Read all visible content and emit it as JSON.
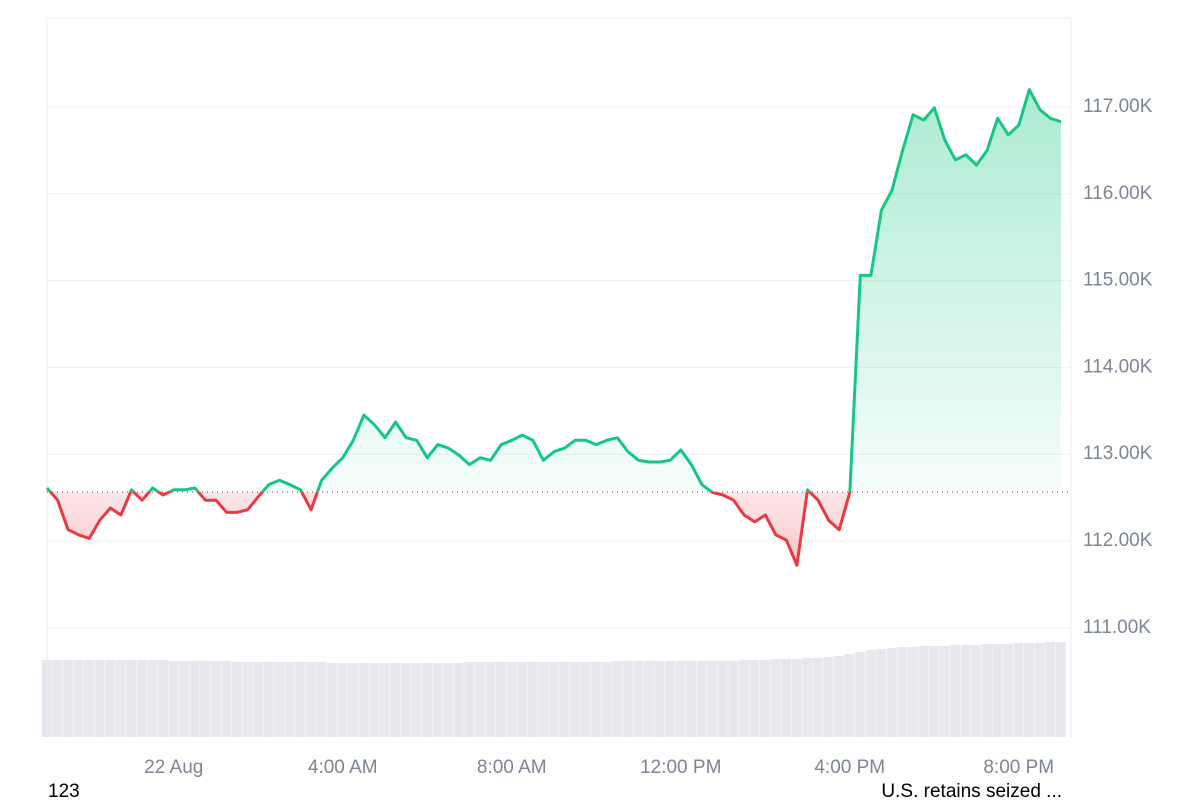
{
  "chart_data": {
    "type": "baseline-line",
    "categories": [
      null,
      null,
      null,
      null,
      null,
      null,
      null,
      null,
      null,
      null,
      null,
      null,
      "22 Aug",
      null,
      null,
      null,
      null,
      null,
      null,
      null,
      null,
      null,
      null,
      null,
      null,
      null,
      null,
      null,
      "4:00 AM",
      null,
      null,
      null,
      null,
      null,
      null,
      null,
      null,
      null,
      null,
      null,
      null,
      null,
      null,
      null,
      "8:00 AM",
      null,
      null,
      null,
      null,
      null,
      null,
      null,
      null,
      null,
      null,
      null,
      null,
      null,
      null,
      null,
      "12:00 PM",
      null,
      null,
      null,
      null,
      null,
      null,
      null,
      null,
      null,
      null,
      null,
      null,
      null,
      null,
      null,
      "4:00 PM",
      null,
      null,
      null,
      null,
      null,
      null,
      null,
      null,
      null,
      null,
      null,
      null,
      null,
      null,
      null,
      "8:00 PM",
      null,
      null,
      null,
      null
    ],
    "values": [
      112610,
      112470,
      112130,
      112070,
      112030,
      112240,
      112380,
      112300,
      112590,
      112470,
      112610,
      112530,
      112590,
      112590,
      112610,
      112470,
      112470,
      112330,
      112330,
      112360,
      112510,
      112650,
      112700,
      112650,
      112590,
      112360,
      112700,
      112840,
      112960,
      113160,
      113450,
      113340,
      113190,
      113370,
      113190,
      113160,
      112960,
      113110,
      113070,
      112990,
      112880,
      112960,
      112930,
      113110,
      113160,
      113220,
      113160,
      112930,
      113030,
      113070,
      113160,
      113160,
      113110,
      113160,
      113190,
      113030,
      112930,
      112910,
      112910,
      112930,
      113050,
      112880,
      112650,
      112560,
      112530,
      112470,
      112300,
      112220,
      112300,
      112070,
      112010,
      111720,
      112590,
      112470,
      112240,
      112130,
      112560,
      115060,
      115060,
      115810,
      116040,
      116500,
      116910,
      116850,
      116990,
      116620,
      116390,
      116450,
      116330,
      116500,
      116870,
      116680,
      116790,
      117200,
      116970,
      116870,
      116830
    ],
    "baseline": 112565,
    "up_color": "#16c784",
    "down_color": "#ea3943",
    "volume": [
      77,
      77,
      77,
      77,
      77,
      77,
      77,
      77,
      77,
      77,
      77,
      77,
      76,
      76,
      76,
      76,
      76,
      76,
      75,
      75,
      75,
      75,
      75,
      75,
      75,
      75,
      75,
      74,
      74,
      74,
      74,
      74,
      74,
      74,
      74,
      74,
      74,
      74,
      74,
      74,
      75,
      75,
      75,
      75,
      75,
      75,
      75,
      75,
      75,
      75,
      75,
      75,
      75,
      75,
      76,
      76,
      76,
      76,
      76,
      76,
      76,
      76,
      76,
      76,
      76,
      76,
      77,
      77,
      77,
      78,
      78,
      78,
      79,
      79,
      80,
      81,
      83,
      85,
      87,
      88,
      89,
      90,
      90,
      91,
      91,
      91,
      92,
      92,
      92,
      93,
      93,
      93,
      94,
      94,
      94,
      95,
      95
    ],
    "volume_color": "#e6e8ee",
    "volume_lim": [
      0,
      100
    ],
    "ylim": [
      109742,
      118025
    ],
    "yticks": [
      {
        "value": 111000,
        "label": "111.00K"
      },
      {
        "value": 112000,
        "label": "112.00K"
      },
      {
        "value": 113000,
        "label": "113.00K"
      },
      {
        "value": 114000,
        "label": "114.00K"
      },
      {
        "value": 115000,
        "label": "115.00K"
      },
      {
        "value": 116000,
        "label": "116.00K"
      },
      {
        "value": 117000,
        "label": "117.00K"
      }
    ],
    "grid": true,
    "annotations": [
      "123",
      "U.S. retains seized ..."
    ]
  }
}
